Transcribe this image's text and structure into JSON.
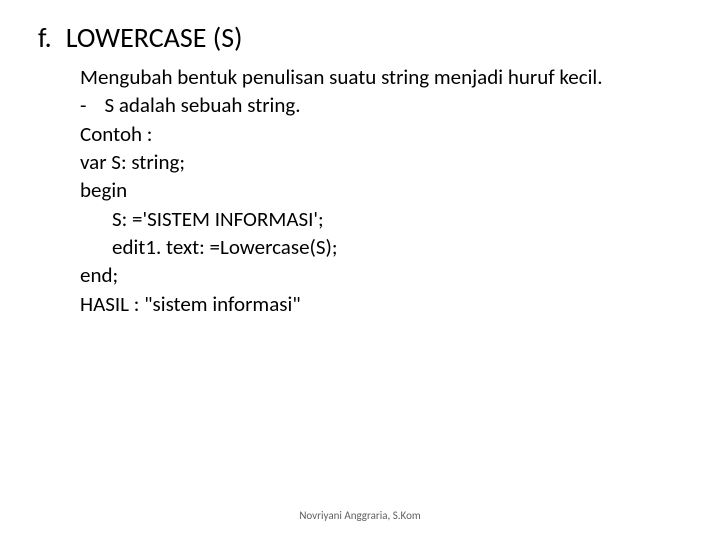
{
  "heading": {
    "list_letter": "f.",
    "title": "LOWERCASE (S)"
  },
  "body": {
    "line1": "Mengubah bentuk penulisan suatu string menjadi huruf kecil.",
    "bullet_dash": "-",
    "bullet_text": "S adalah sebuah string.",
    "line_contoh": "Contoh :",
    "line_var": "var  S: string;",
    "line_begin": "begin",
    "line_assign": "S: ='SISTEM INFORMASI';",
    "line_edit": "edit1. text: =Lowercase(S);",
    "line_end": "end;",
    "line_hasil": "HASIL : \"sistem informasi\""
  },
  "footer": {
    "author": "Novriyani Anggraria, S.Kom"
  }
}
